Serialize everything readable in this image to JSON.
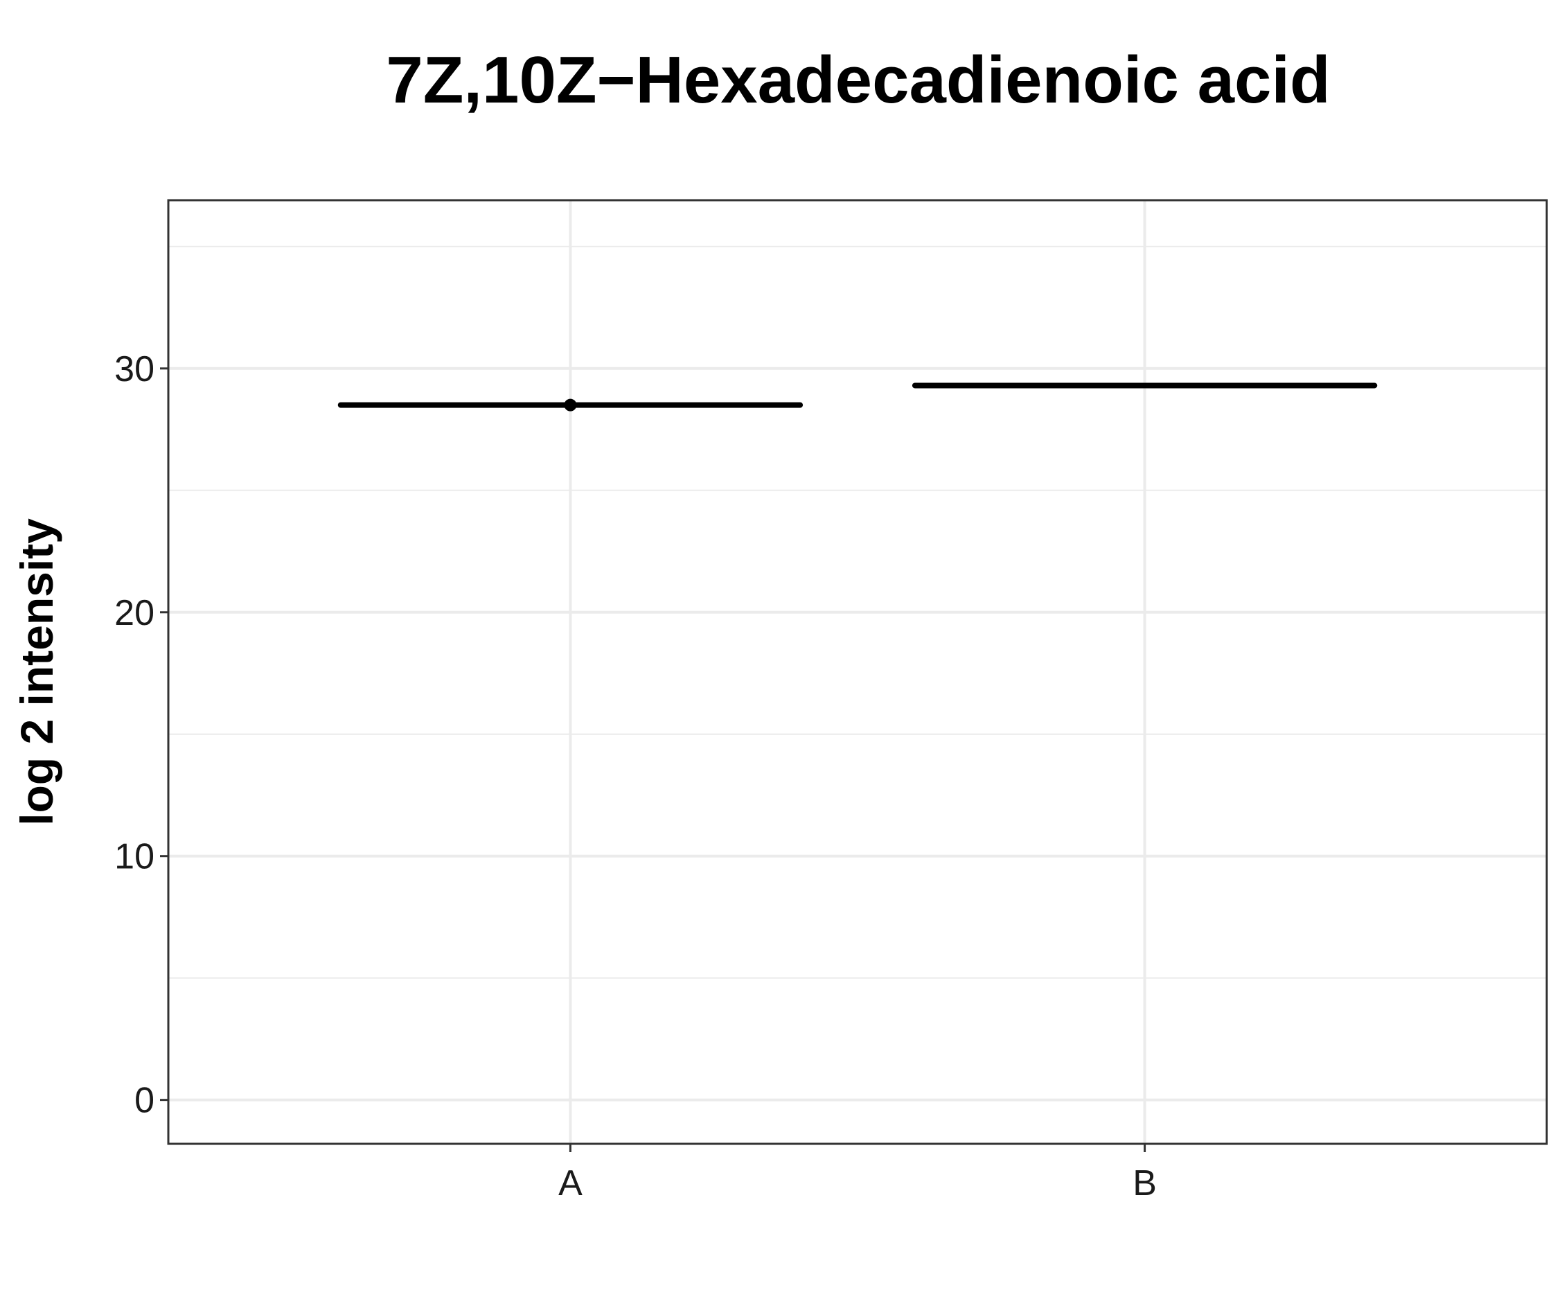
{
  "chart_data": {
    "type": "box",
    "title": "7Z,10Z−Hexadecadienoic acid",
    "xlabel": "",
    "ylabel": "log 2 intensity",
    "categories": [
      "A",
      "B"
    ],
    "yticks": [
      0,
      10,
      20,
      30
    ],
    "yticklabels": [
      "0",
      "10",
      "20",
      "30"
    ],
    "ylim": [
      -1.8,
      36.9
    ],
    "grid": true,
    "legend": "none",
    "series": [
      {
        "values": [
          {
            "category": "A",
            "median": 28.5,
            "lower": 28.5,
            "upper": 28.5,
            "points": [
              28.5
            ]
          },
          {
            "category": "B",
            "median": 29.3,
            "lower": 29.3,
            "upper": 29.3,
            "points": []
          }
        ]
      }
    ],
    "colors": {
      "box": "#000000",
      "grid": "#ebebeb",
      "border": "#333333",
      "background": "#ffffff"
    }
  }
}
